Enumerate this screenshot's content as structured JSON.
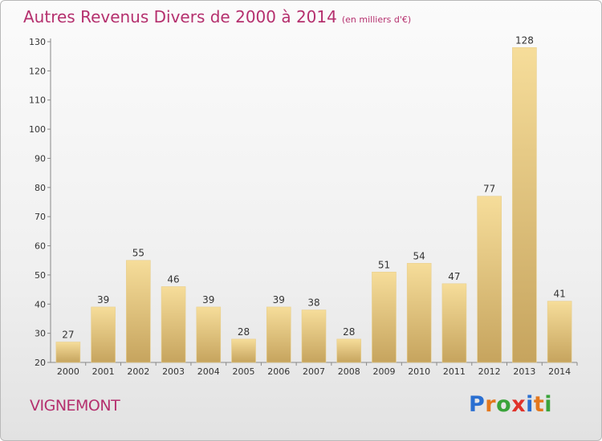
{
  "header": {
    "title": "Autres Revenus Divers de 2000 à 2014",
    "unit": "(en milliers d'€)"
  },
  "footer": {
    "city": "VIGNEMONT",
    "logo": "Proxiti"
  },
  "colors": {
    "accent": "#b5306e",
    "bar_light": "#f5dc98",
    "bar_dark": "#c8a761"
  },
  "chart_data": {
    "type": "bar",
    "title": "Autres Revenus Divers de 2000 à 2014",
    "subtitle": "(en milliers d'€)",
    "categories": [
      "2000",
      "2001",
      "2002",
      "2003",
      "2004",
      "2005",
      "2006",
      "2007",
      "2008",
      "2009",
      "2010",
      "2011",
      "2012",
      "2013",
      "2014"
    ],
    "values": [
      27,
      39,
      55,
      46,
      39,
      28,
      39,
      38,
      28,
      51,
      54,
      47,
      77,
      128,
      41
    ],
    "ylim": [
      20,
      130
    ],
    "yticks": [
      20,
      30,
      40,
      50,
      60,
      70,
      80,
      90,
      100,
      110,
      120,
      130
    ],
    "grid": false,
    "legend": "none",
    "xlabel": "",
    "ylabel": ""
  }
}
